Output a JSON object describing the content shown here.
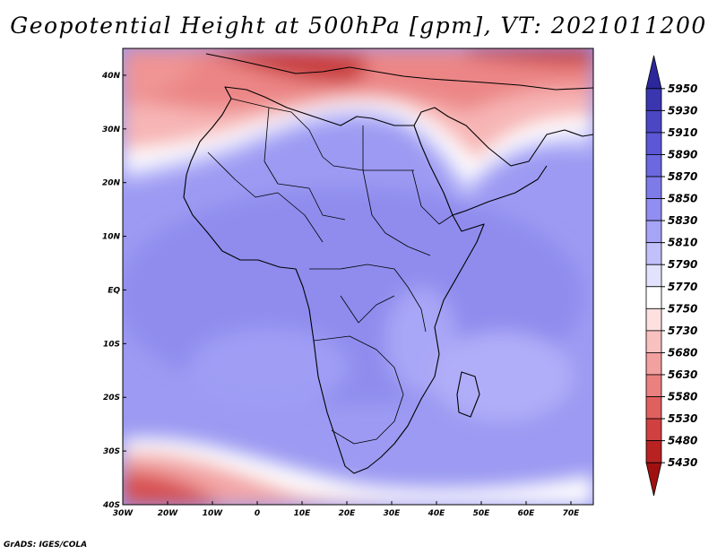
{
  "title": "Geopotential Height at 500hPa [gpm], VT: 2021011200",
  "credit": "GrADS: IGES/COLA",
  "map": {
    "lon_range": [
      -30,
      75
    ],
    "lat_range": [
      -40,
      45
    ],
    "lon_ticks": [
      {
        "value": -30,
        "label": "30W"
      },
      {
        "value": -20,
        "label": "20W"
      },
      {
        "value": -10,
        "label": "10W"
      },
      {
        "value": 0,
        "label": "0"
      },
      {
        "value": 10,
        "label": "10E"
      },
      {
        "value": 20,
        "label": "20E"
      },
      {
        "value": 30,
        "label": "30E"
      },
      {
        "value": 40,
        "label": "40E"
      },
      {
        "value": 50,
        "label": "50E"
      },
      {
        "value": 60,
        "label": "60E"
      },
      {
        "value": 70,
        "label": "70E"
      }
    ],
    "lat_ticks": [
      {
        "value": 40,
        "label": "40N"
      },
      {
        "value": 30,
        "label": "30N"
      },
      {
        "value": 20,
        "label": "20N"
      },
      {
        "value": 10,
        "label": "10N"
      },
      {
        "value": 0,
        "label": "EQ"
      },
      {
        "value": -10,
        "label": "10S"
      },
      {
        "value": -20,
        "label": "20S"
      },
      {
        "value": -30,
        "label": "30S"
      },
      {
        "value": -40,
        "label": "40S"
      }
    ]
  },
  "colorbar": {
    "levels": [
      "5950",
      "5930",
      "5910",
      "5890",
      "5870",
      "5850",
      "5830",
      "5810",
      "5790",
      "5770",
      "5750",
      "5730",
      "5680",
      "5630",
      "5580",
      "5530",
      "5480",
      "5430"
    ],
    "colors": [
      "#2c279b",
      "#3a36b0",
      "#4a46c4",
      "#5b57d6",
      "#6b68e0",
      "#7d7be8",
      "#908ef0",
      "#a6a4f6",
      "#c1c0fa",
      "#e2e2fd",
      "#ffffff",
      "#fde0e0",
      "#f9c0c0",
      "#f3a0a0",
      "#ec8080",
      "#e06060",
      "#d04040",
      "#b82222",
      "#a01010"
    ]
  }
}
